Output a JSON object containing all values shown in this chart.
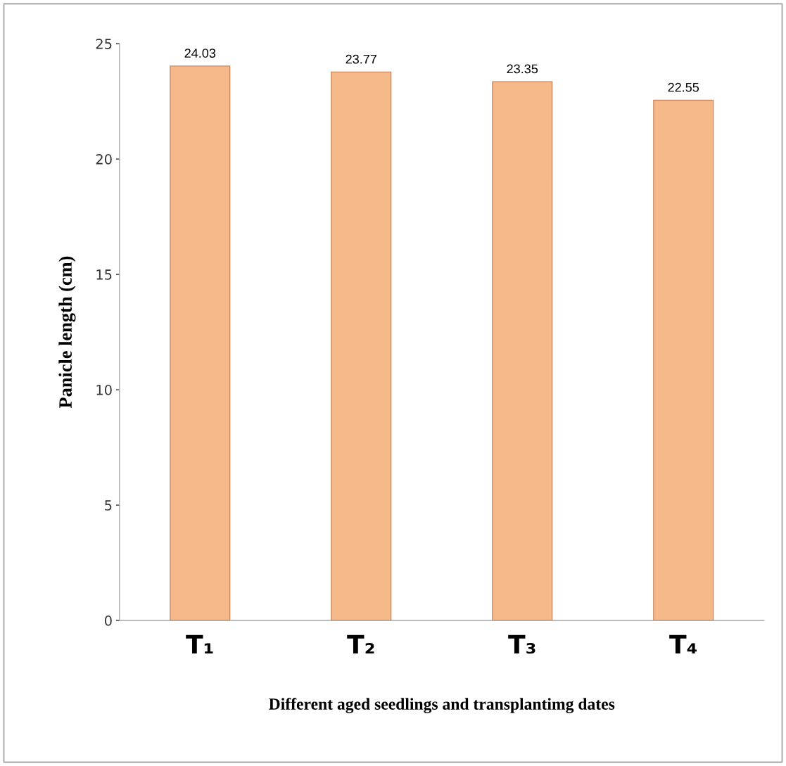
{
  "chart_data": {
    "type": "bar",
    "categories": [
      "T₁",
      "T₂",
      "T₃",
      "T₄"
    ],
    "values": [
      24.03,
      23.77,
      23.35,
      22.55
    ],
    "color": "#f5b98a",
    "data_labels": true,
    "xlabel": "Different aged seedlings and transplantimg dates",
    "ylabel": "Panicle length (cm)",
    "ylim": [
      0,
      25
    ],
    "yticks": [
      0,
      5,
      10,
      15,
      20,
      25
    ],
    "grid": false,
    "legend": false
  }
}
